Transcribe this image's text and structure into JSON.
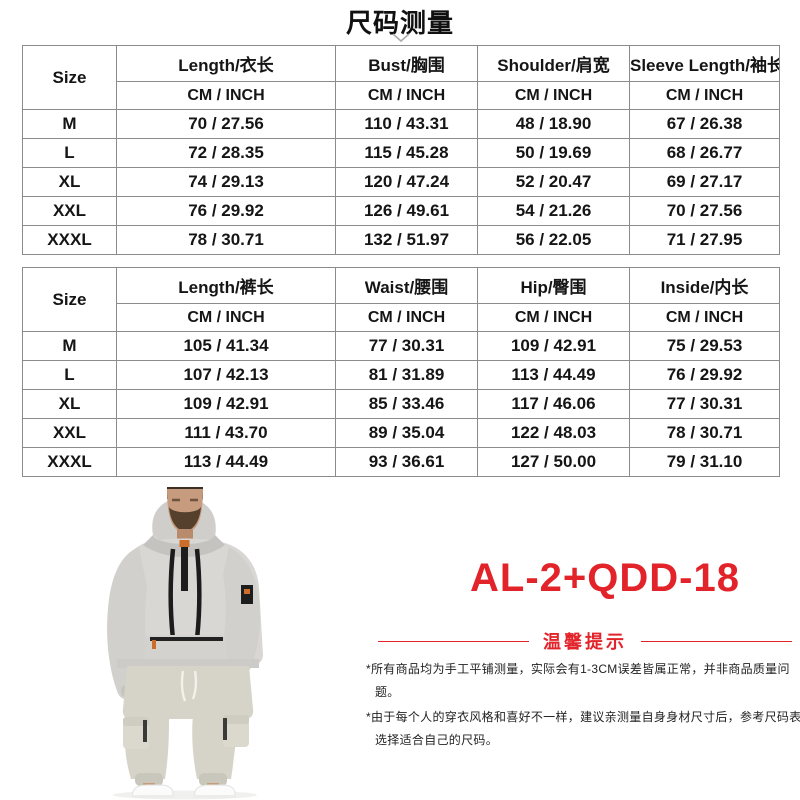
{
  "page": {
    "title": "尺码测量"
  },
  "tables": {
    "top": {
      "size_label": "Size",
      "unit_label": "CM / INCH",
      "columns": [
        "Length/衣长",
        "Bust/胸围",
        "Shoulder/肩宽",
        "Sleeve Length/袖长"
      ],
      "rows": [
        {
          "size": "M",
          "values": [
            "70 / 27.56",
            "110 / 43.31",
            "48 / 18.90",
            "67 / 26.38"
          ]
        },
        {
          "size": "L",
          "values": [
            "72 / 28.35",
            "115 / 45.28",
            "50 / 19.69",
            "68 / 26.77"
          ]
        },
        {
          "size": "XL",
          "values": [
            "74 / 29.13",
            "120 / 47.24",
            "52 / 20.47",
            "69 / 27.17"
          ]
        },
        {
          "size": "XXL",
          "values": [
            "76 / 29.92",
            "126 / 49.61",
            "54 / 21.26",
            "70 / 27.56"
          ]
        },
        {
          "size": "XXXL",
          "values": [
            "78 / 30.71",
            "132 / 51.97",
            "56 / 22.05",
            "71 / 27.95"
          ]
        }
      ]
    },
    "bottom": {
      "size_label": "Size",
      "unit_label": "CM / INCH",
      "columns": [
        "Length/裤长",
        "Waist/腰围",
        "Hip/臀围",
        "Inside/内长"
      ],
      "rows": [
        {
          "size": "M",
          "values": [
            "105 / 41.34",
            "77 / 30.31",
            "109 / 42.91",
            "75 / 29.53"
          ]
        },
        {
          "size": "L",
          "values": [
            "107 / 42.13",
            "81 / 31.89",
            "113 / 44.49",
            "76 / 29.92"
          ]
        },
        {
          "size": "XL",
          "values": [
            "109 / 42.91",
            "85 / 33.46",
            "117 / 46.06",
            "77 / 30.31"
          ]
        },
        {
          "size": "XXL",
          "values": [
            "111 / 43.70",
            "89 / 35.04",
            "122 / 48.03",
            "78 / 30.71"
          ]
        },
        {
          "size": "XXXL",
          "values": [
            "113 / 44.49",
            "93 / 36.61",
            "127 / 50.00",
            "79 / 31.10"
          ]
        }
      ]
    }
  },
  "product": {
    "code": "AL-2+QDD-18",
    "tips_title": "温馨提示",
    "tips": [
      "*所有商品均为手工平铺测量，实际会有1-3CM误差皆属正常，并非商品质量问题。",
      "*由于每个人的穿衣风格和喜好不一样，建议亲测量自身身材尺寸后，参考尺码表选择适合自己的尺码。"
    ]
  },
  "colors": {
    "accent_red": "#e2232a",
    "table_border": "#8b8b8b",
    "hoodie_gray": "#d8d7d3",
    "pants_gray": "#d6d4c9"
  }
}
